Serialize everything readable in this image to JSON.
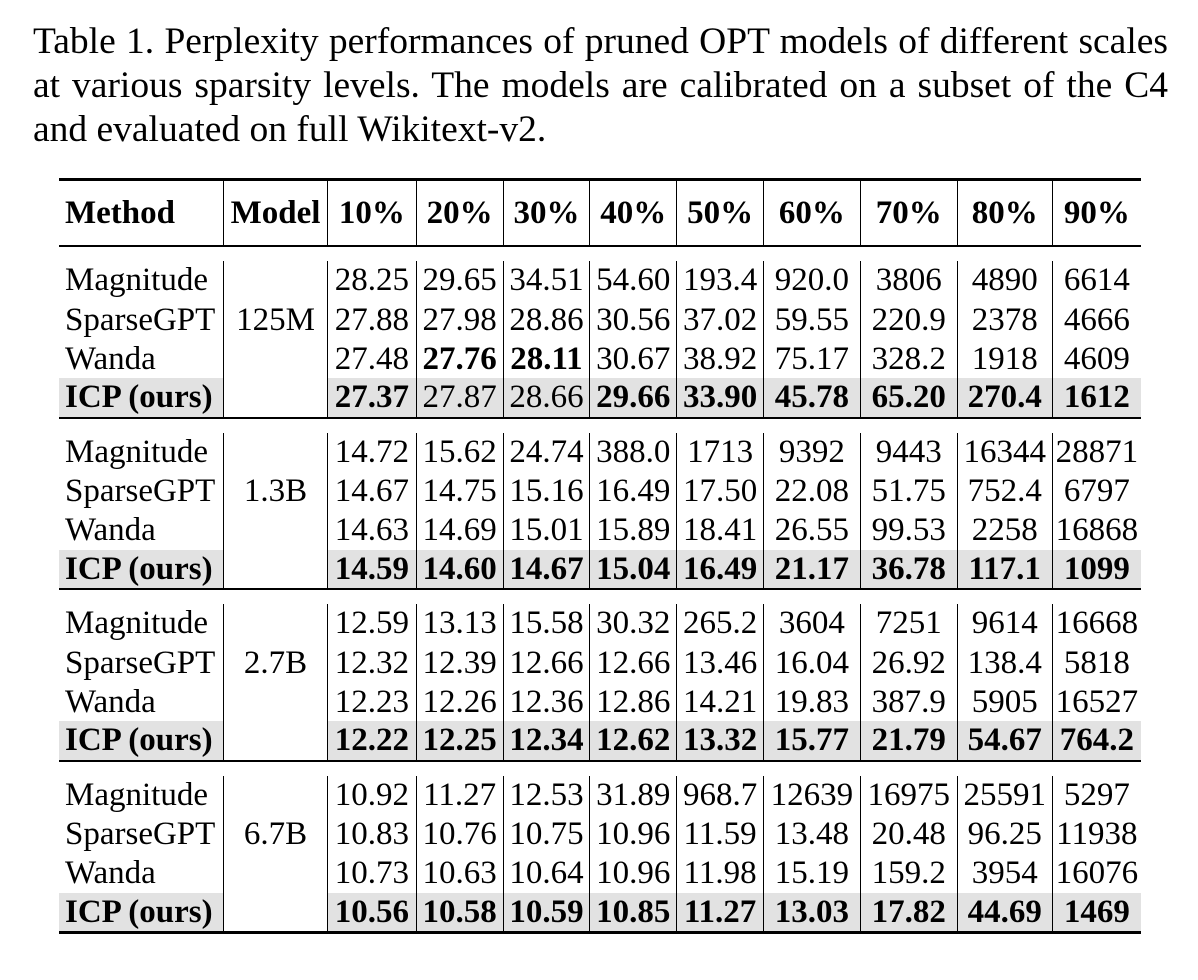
{
  "caption": "Table 1. Perplexity performances of pruned OPT models of different scales at various sparsity levels. The models are calibrated on a subset of the C4 and evaluated on full Wikitext-v2.",
  "table": {
    "headers": [
      "Method",
      "Model",
      "10%",
      "20%",
      "30%",
      "40%",
      "50%",
      "60%",
      "70%",
      "80%",
      "90%"
    ],
    "groups": [
      {
        "model": "125M",
        "rows": [
          {
            "method": "Magnitude",
            "values": [
              "28.25",
              "29.65",
              "34.51",
              "54.60",
              "193.4",
              "920.0",
              "3806",
              "4890",
              "6614"
            ],
            "bold": []
          },
          {
            "method": "SparseGPT",
            "values": [
              "27.88",
              "27.98",
              "28.86",
              "30.56",
              "37.02",
              "59.55",
              "220.9",
              "2378",
              "4666"
            ],
            "bold": []
          },
          {
            "method": "Wanda",
            "values": [
              "27.48",
              "27.76",
              "28.11",
              "30.67",
              "38.92",
              "75.17",
              "328.2",
              "1918",
              "4609"
            ],
            "bold": [
              1,
              2
            ]
          },
          {
            "method": "ICP (ours)",
            "values": [
              "27.37",
              "27.87",
              "28.66",
              "29.66",
              "33.90",
              "45.78",
              "65.20",
              "270.4",
              "1612"
            ],
            "bold": [
              0,
              3,
              4,
              5,
              6,
              7,
              8
            ]
          }
        ]
      },
      {
        "model": "1.3B",
        "rows": [
          {
            "method": "Magnitude",
            "values": [
              "14.72",
              "15.62",
              "24.74",
              "388.0",
              "1713",
              "9392",
              "9443",
              "16344",
              "28871"
            ],
            "bold": []
          },
          {
            "method": "SparseGPT",
            "values": [
              "14.67",
              "14.75",
              "15.16",
              "16.49",
              "17.50",
              "22.08",
              "51.75",
              "752.4",
              "6797"
            ],
            "bold": []
          },
          {
            "method": "Wanda",
            "values": [
              "14.63",
              "14.69",
              "15.01",
              "15.89",
              "18.41",
              "26.55",
              "99.53",
              "2258",
              "16868"
            ],
            "bold": []
          },
          {
            "method": "ICP (ours)",
            "values": [
              "14.59",
              "14.60",
              "14.67",
              "15.04",
              "16.49",
              "21.17",
              "36.78",
              "117.1",
              "1099"
            ],
            "bold": [
              0,
              1,
              2,
              3,
              4,
              5,
              6,
              7,
              8
            ]
          }
        ]
      },
      {
        "model": "2.7B",
        "rows": [
          {
            "method": "Magnitude",
            "values": [
              "12.59",
              "13.13",
              "15.58",
              "30.32",
              "265.2",
              "3604",
              "7251",
              "9614",
              "16668"
            ],
            "bold": []
          },
          {
            "method": "SparseGPT",
            "values": [
              "12.32",
              "12.39",
              "12.66",
              "12.66",
              "13.46",
              "16.04",
              "26.92",
              "138.4",
              "5818"
            ],
            "bold": []
          },
          {
            "method": "Wanda",
            "values": [
              "12.23",
              "12.26",
              "12.36",
              "12.86",
              "14.21",
              "19.83",
              "387.9",
              "5905",
              "16527"
            ],
            "bold": []
          },
          {
            "method": "ICP (ours)",
            "values": [
              "12.22",
              "12.25",
              "12.34",
              "12.62",
              "13.32",
              "15.77",
              "21.79",
              "54.67",
              "764.2"
            ],
            "bold": [
              0,
              1,
              2,
              3,
              4,
              5,
              6,
              7,
              8
            ]
          }
        ]
      },
      {
        "model": "6.7B",
        "rows": [
          {
            "method": "Magnitude",
            "values": [
              "10.92",
              "11.27",
              "12.53",
              "31.89",
              "968.7",
              "12639",
              "16975",
              "25591",
              "5297"
            ],
            "bold": []
          },
          {
            "method": "SparseGPT",
            "values": [
              "10.83",
              "10.76",
              "10.75",
              "10.96",
              "11.59",
              "13.48",
              "20.48",
              "96.25",
              "11938"
            ],
            "bold": []
          },
          {
            "method": "Wanda",
            "values": [
              "10.73",
              "10.63",
              "10.64",
              "10.96",
              "11.98",
              "15.19",
              "159.2",
              "3954",
              "16076"
            ],
            "bold": []
          },
          {
            "method": "ICP (ours)",
            "values": [
              "10.56",
              "10.58",
              "10.59",
              "10.85",
              "11.27",
              "13.03",
              "17.82",
              "44.69",
              "1469"
            ],
            "bold": [
              0,
              1,
              2,
              3,
              4,
              5,
              6,
              7,
              8
            ]
          }
        ]
      }
    ]
  },
  "colors": {
    "highlight_row": "#e2e2e2",
    "text": "#000000"
  }
}
